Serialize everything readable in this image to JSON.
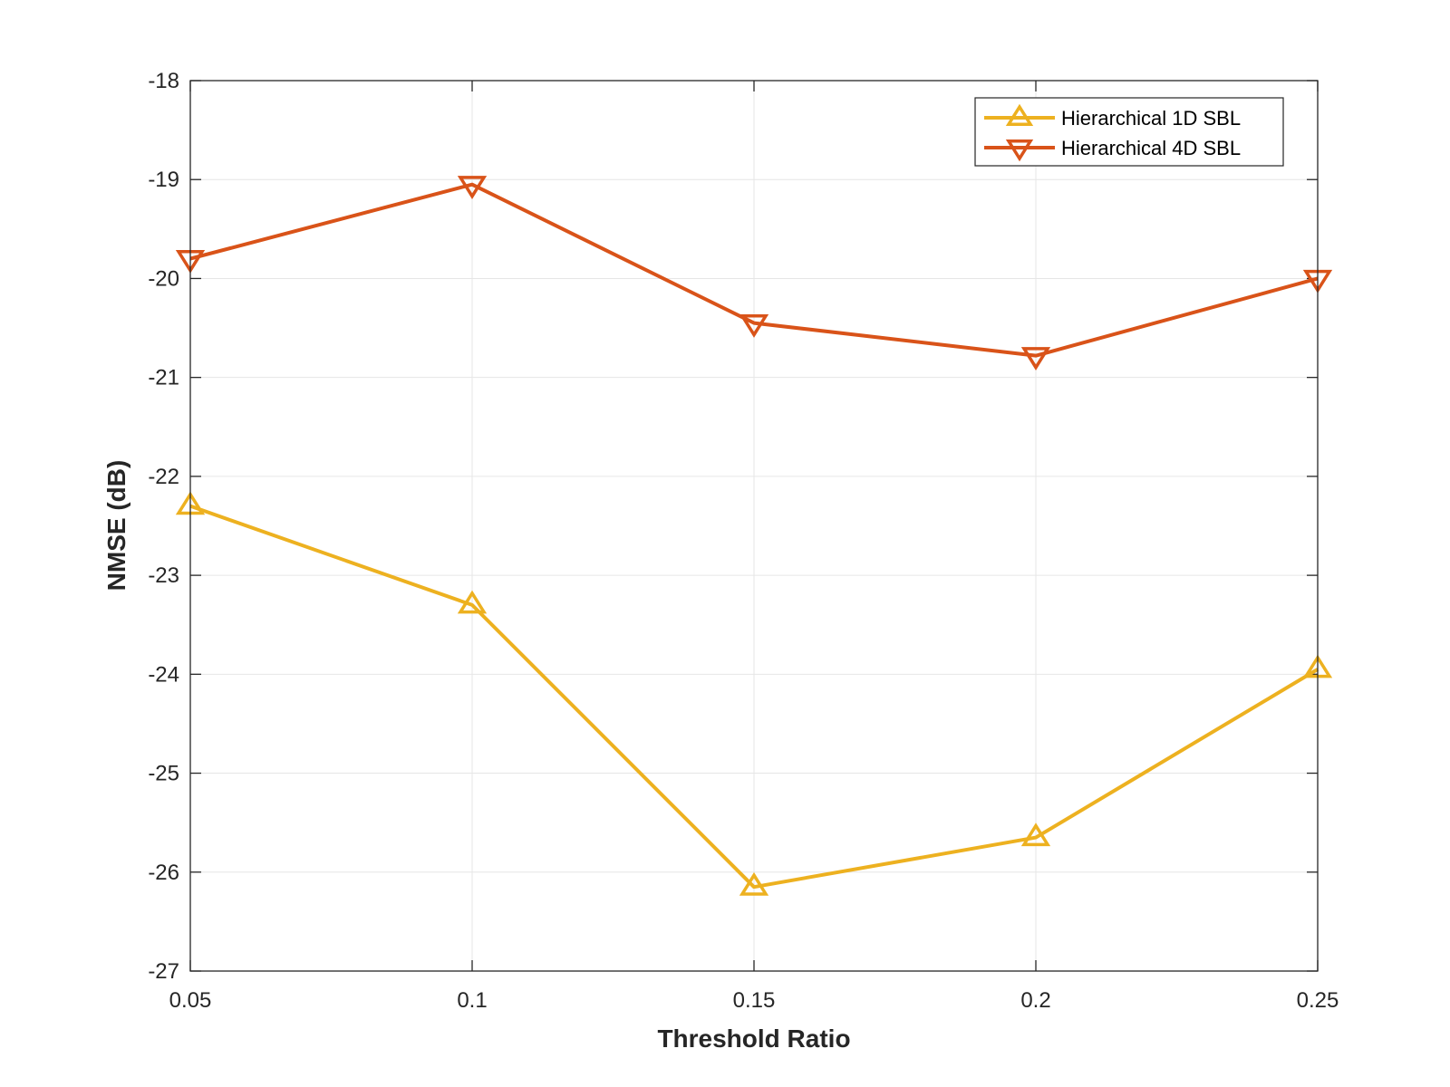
{
  "chart_data": {
    "type": "line",
    "title": "",
    "xlabel": "Threshold Ratio",
    "ylabel": "NMSE (dB)",
    "x": [
      0.05,
      0.1,
      0.15,
      0.2,
      0.25
    ],
    "x_ticks": [
      "0.05",
      "0.1",
      "0.15",
      "0.2",
      "0.25"
    ],
    "xlim": [
      0.05,
      0.25
    ],
    "y_ticks": [
      "-18",
      "-19",
      "-20",
      "-21",
      "-22",
      "-23",
      "-24",
      "-25",
      "-26",
      "-27"
    ],
    "ylim": [
      -27,
      -18
    ],
    "grid": true,
    "legend_position": "top-right",
    "series": [
      {
        "name": "Hierarchical 1D SBL",
        "values": [
          -22.3,
          -23.3,
          -26.15,
          -25.65,
          -23.95
        ],
        "color": "#EDB120",
        "marker": "triangle-up"
      },
      {
        "name": "Hierarchical 4D SBL",
        "values": [
          -19.8,
          -19.05,
          -20.45,
          -20.78,
          -20.0
        ],
        "color": "#D95319",
        "marker": "triangle-down"
      }
    ]
  }
}
